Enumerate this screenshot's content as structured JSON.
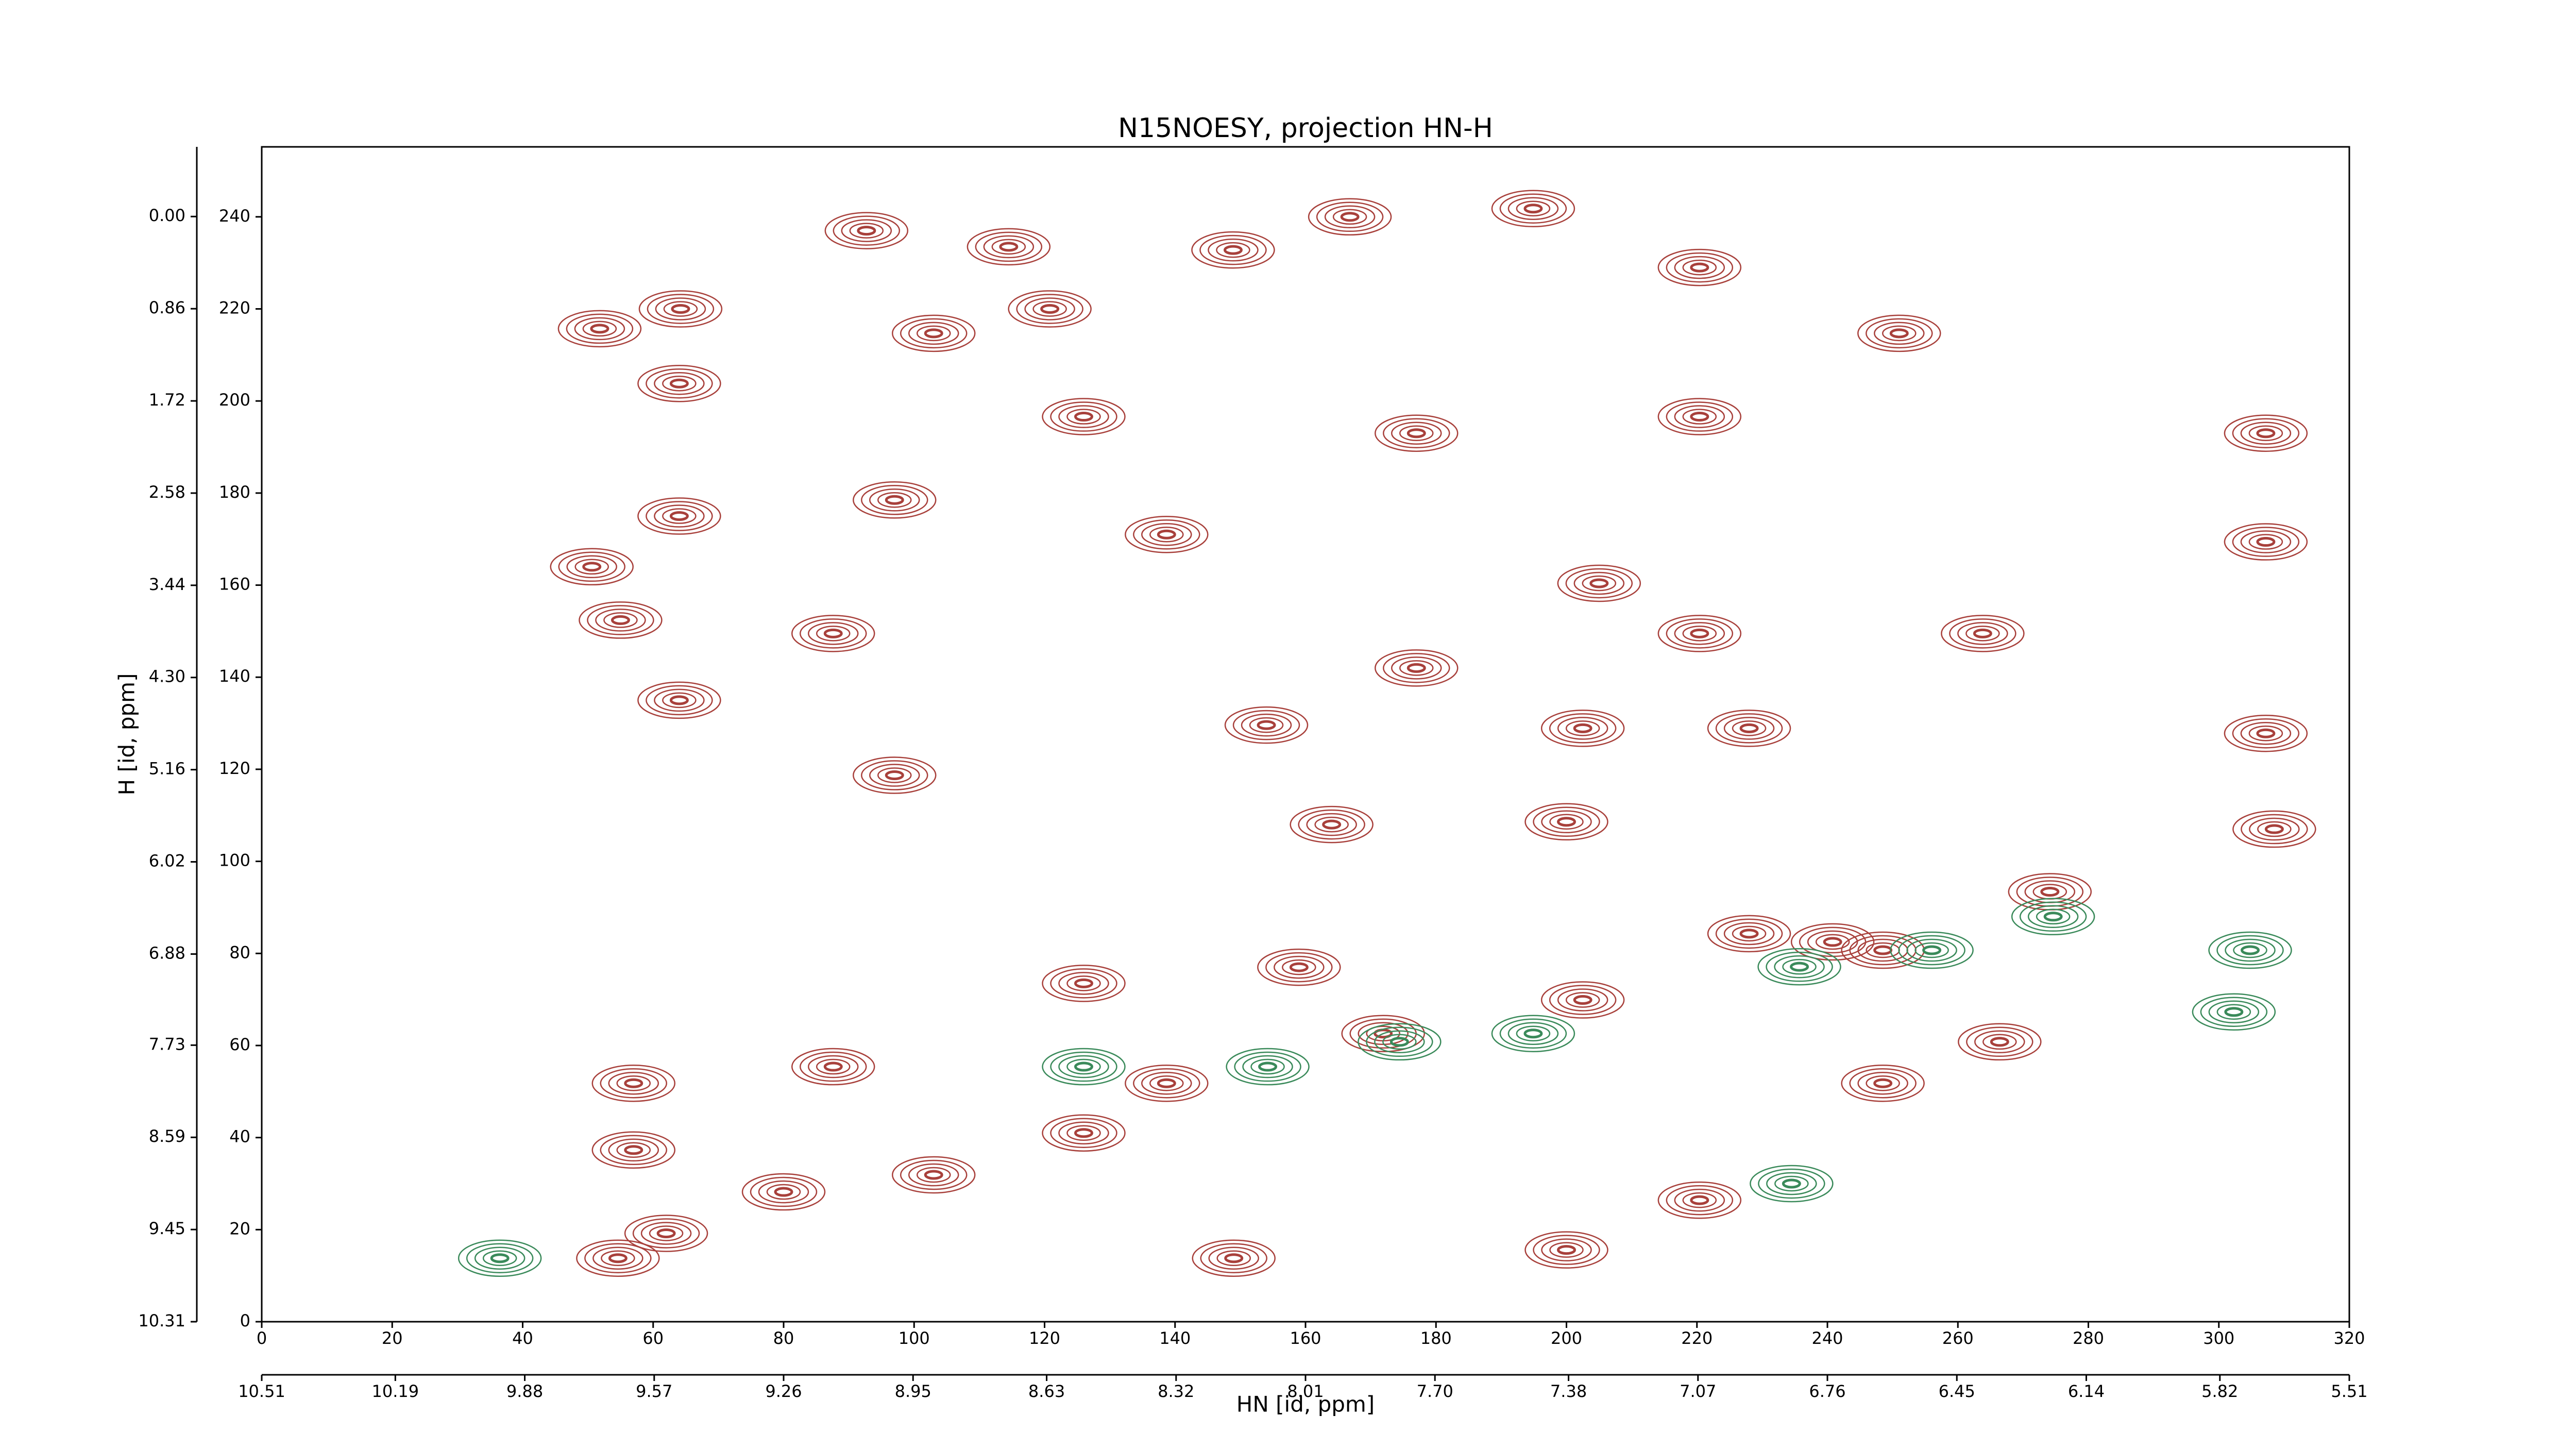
{
  "chart_data": {
    "type": "contour",
    "title": "N15NOESY, projection HN-H",
    "xlabel": "HN [id, ppm]",
    "ylabel": "H [id, ppm]",
    "xlim": [
      0,
      320
    ],
    "xticks": [
      0,
      20,
      40,
      60,
      80,
      100,
      120,
      140,
      160,
      180,
      200,
      220,
      240,
      260,
      280,
      300,
      320
    ],
    "ylim": [
      0,
      255.2
    ],
    "yticks": [
      0,
      20,
      40,
      60,
      80,
      100,
      120,
      140,
      160,
      180,
      200,
      220,
      240
    ],
    "x2lim": [
      10.51,
      5.51
    ],
    "x2ticks": [
      10.51,
      10.19,
      9.88,
      9.57,
      9.26,
      8.95,
      8.63,
      8.32,
      8.01,
      {
        "value": 7.7,
        "label": "7.70"
      },
      7.38,
      7.07,
      6.76,
      6.45,
      6.14,
      5.82,
      5.51
    ],
    "y2lim": [
      10.31,
      -0.65
    ],
    "y2ticks": [
      {
        "value": 0,
        "label": "0.00"
      },
      0.86,
      1.72,
      2.58,
      3.44,
      {
        "value": 4.3,
        "label": "4.30"
      },
      5.16,
      6.02,
      6.88,
      7.73,
      8.59,
      9.45,
      10.31
    ],
    "series": [
      {
        "color": "#a8403b",
        "x": [
          51.8,
          64.2,
          64,
          64,
          50.6,
          55,
          64,
          92.7,
          114.5,
          120.8,
          148.9,
          166.8,
          194.9,
          220.4,
          220.4,
          205,
          220.4,
          263.8,
          251,
          307.2,
          307.2,
          307.2,
          308.5,
          97,
          200,
          164,
          97,
          138.7,
          103,
          126,
          177,
          87.6,
          177,
          274.1,
          248.5,
          228,
          159,
          126,
          87.6,
          57,
          57,
          80,
          54.6,
          62,
          126,
          149,
          200,
          266.4,
          248.5,
          220.4,
          103,
          138.7,
          171.9,
          202.5,
          240.8,
          154,
          202.5,
          228
        ],
        "values": [
          215.7,
          220,
          203.8,
          175,
          164,
          152.4,
          135,
          237,
          233.5,
          220,
          232.8,
          240,
          241.8,
          229,
          196.6,
          160.4,
          149.5,
          149.5,
          214.7,
          193,
          169.4,
          127.8,
          107,
          118.7,
          108.6,
          108,
          178.5,
          171,
          214.7,
          196.6,
          193,
          149.5,
          142,
          93.4,
          80.7,
          84.3,
          77,
          73.5,
          55.4,
          51.8,
          37.3,
          28.2,
          13.8,
          19.2,
          41,
          13.8,
          15.6,
          60.8,
          51.8,
          26.4,
          31.9,
          51.8,
          62.6,
          69.9,
          82.5,
          129.6,
          128.9,
          128.9
        ]
      },
      {
        "color": "#3a8a5a",
        "x": [
          126,
          174.4,
          194.9,
          235.7,
          256,
          304.8,
          302.3,
          274.6,
          154.2,
          234.5,
          36.5
        ],
        "values": [
          55.4,
          60.8,
          62.6,
          77.1,
          80.7,
          80.7,
          67.3,
          88,
          55.4,
          30,
          13.8
        ]
      }
    ]
  }
}
